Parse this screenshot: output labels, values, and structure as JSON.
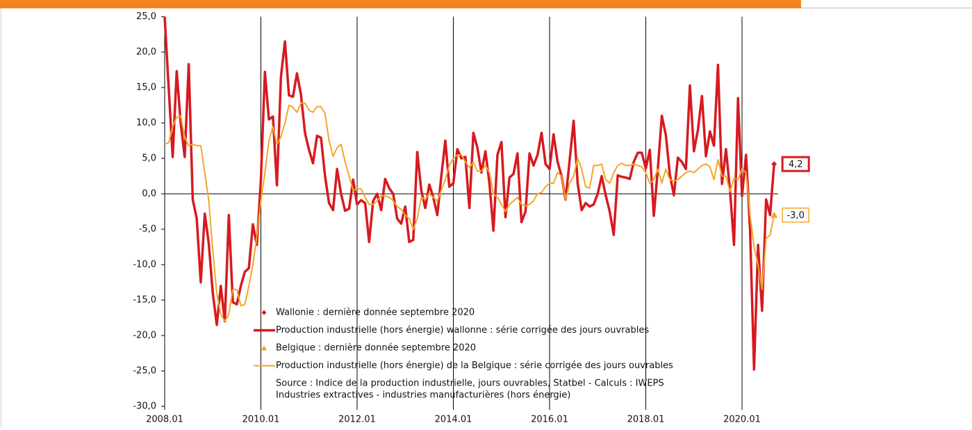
{
  "chart_data": {
    "type": "line",
    "categories": [
      "2008.01",
      null,
      null,
      null,
      null,
      null,
      null,
      null,
      null,
      null,
      null,
      null,
      null,
      null,
      null,
      null,
      null,
      null,
      null,
      null,
      null,
      null,
      null,
      null,
      "2010.01",
      null,
      null,
      null,
      null,
      null,
      null,
      null,
      null,
      null,
      null,
      null,
      null,
      null,
      null,
      null,
      null,
      null,
      null,
      null,
      null,
      null,
      null,
      null,
      "2012.01",
      null,
      null,
      null,
      null,
      null,
      null,
      null,
      null,
      null,
      null,
      null,
      null,
      null,
      null,
      null,
      null,
      null,
      null,
      null,
      null,
      null,
      null,
      null,
      "2014.01",
      null,
      null,
      null,
      null,
      null,
      null,
      null,
      null,
      null,
      null,
      null,
      null,
      null,
      null,
      null,
      null,
      null,
      null,
      null,
      null,
      null,
      null,
      null,
      "2016.01",
      null,
      null,
      null,
      null,
      null,
      null,
      null,
      null,
      null,
      null,
      null,
      null,
      null,
      null,
      null,
      null,
      null,
      null,
      null,
      null,
      null,
      null,
      null,
      "2018.01",
      null,
      null,
      null,
      null,
      null,
      null,
      null,
      null,
      null,
      null,
      null,
      null,
      null,
      null,
      null,
      null,
      null,
      null,
      null,
      null,
      null,
      null,
      null,
      "2020.01",
      null,
      null,
      null,
      null,
      null,
      null,
      null,
      null
    ],
    "series": [
      {
        "name": "Wallonie : dernière donnée septembre 2020",
        "color": "#d71920",
        "marker": "diamond",
        "values": [
          null,
          null,
          null,
          null,
          null,
          null,
          null,
          null,
          null,
          null,
          null,
          null,
          null,
          null,
          null,
          null,
          null,
          null,
          null,
          null,
          null,
          null,
          null,
          null,
          null,
          null,
          null,
          null,
          null,
          null,
          null,
          null,
          null,
          null,
          null,
          null,
          null,
          null,
          null,
          null,
          null,
          null,
          null,
          null,
          null,
          null,
          null,
          null,
          null,
          null,
          null,
          null,
          null,
          null,
          null,
          null,
          null,
          null,
          null,
          null,
          null,
          null,
          null,
          null,
          null,
          null,
          null,
          null,
          null,
          null,
          null,
          null,
          null,
          null,
          null,
          null,
          null,
          null,
          null,
          null,
          null,
          null,
          null,
          null,
          null,
          null,
          null,
          null,
          null,
          null,
          null,
          null,
          null,
          null,
          null,
          null,
          null,
          null,
          null,
          null,
          null,
          null,
          null,
          null,
          null,
          null,
          null,
          null,
          null,
          null,
          null,
          null,
          null,
          null,
          null,
          null,
          null,
          null,
          null,
          null,
          null,
          null,
          null,
          null,
          null,
          null,
          null,
          null,
          null,
          null,
          null,
          null,
          null,
          null,
          null,
          null,
          null,
          null,
          null,
          null,
          null,
          null,
          null,
          null,
          null,
          null,
          null,
          null,
          null,
          null,
          null,
          null,
          4.2
        ],
        "value_labels": [
          null,
          null,
          null,
          null,
          null,
          null,
          null,
          null,
          null,
          null,
          null,
          null,
          null,
          null,
          null,
          null,
          null,
          null,
          null,
          null,
          null,
          null,
          null,
          null,
          null,
          null,
          null,
          null,
          null,
          null,
          null,
          null,
          null,
          null,
          null,
          null,
          null,
          null,
          null,
          null,
          null,
          null,
          null,
          null,
          null,
          null,
          null,
          null,
          null,
          null,
          null,
          null,
          null,
          null,
          null,
          null,
          null,
          null,
          null,
          null,
          null,
          null,
          null,
          null,
          null,
          null,
          null,
          null,
          null,
          null,
          null,
          null,
          null,
          null,
          null,
          null,
          null,
          null,
          null,
          null,
          null,
          null,
          null,
          null,
          null,
          null,
          null,
          null,
          null,
          null,
          null,
          null,
          null,
          null,
          null,
          null,
          null,
          null,
          null,
          null,
          null,
          null,
          null,
          null,
          null,
          null,
          null,
          null,
          null,
          null,
          null,
          null,
          null,
          null,
          null,
          null,
          null,
          null,
          null,
          null,
          null,
          null,
          null,
          null,
          null,
          null,
          null,
          null,
          null,
          null,
          null,
          null,
          null,
          null,
          null,
          null,
          null,
          null,
          null,
          null,
          null,
          null,
          null,
          null,
          null,
          null,
          null,
          null,
          null,
          null,
          null,
          null,
          "4,2"
        ]
      },
      {
        "name": "Production  industrielle (hors énergie) wallonne : série corrigée des jours ouvrables",
        "color": "#d71920",
        "width": 3.5,
        "values": [
          25,
          15,
          5.2,
          17.3,
          10,
          5.2,
          18.3,
          -0.8,
          -3.5,
          -12.5,
          -2.8,
          -7,
          -14,
          -18.5,
          -13,
          -18,
          -3,
          -15.3,
          -15.6,
          -13,
          -11,
          -10.5,
          -4.3,
          -7.2,
          2,
          17.2,
          10.5,
          10.9,
          1.2,
          16.5,
          21.5,
          13.9,
          13.7,
          17,
          14,
          8.6,
          6.2,
          4.3,
          8.2,
          7.9,
          2.5,
          -1.3,
          -2.3,
          3.5,
          0,
          -2.4,
          -2.1,
          2,
          -1.5,
          -0.9,
          -1.3,
          -6.8,
          -1,
          0,
          -2.3,
          2.1,
          0.8,
          0,
          -3.5,
          -4.2,
          -1.8,
          -6.8,
          -6.5,
          5.9,
          0.5,
          -2,
          1.3,
          -0.5,
          -3,
          2.5,
          7.5,
          1,
          1.5,
          6.3,
          5,
          5.2,
          -2,
          8.6,
          6.5,
          3,
          6,
          1.5,
          -5.2,
          5.5,
          7.3,
          -3.3,
          2.3,
          2.8,
          5.7,
          -4,
          -2.5,
          5.7,
          4,
          5.5,
          8.6,
          4.2,
          3.5,
          8.4,
          4.5,
          2.5,
          -0.8,
          4.7,
          10.3,
          1.5,
          -2.3,
          -1.3,
          -1.8,
          -1.5,
          0,
          2.5,
          -0.2,
          -2.5,
          -5.8,
          2.6,
          2.4,
          2.3,
          2.1,
          4.5,
          5.8,
          5.8,
          3.6,
          6.2,
          -3.1,
          3.5,
          11,
          8.3,
          2.7,
          -0.2,
          5.1,
          4.5,
          3.5,
          15.3,
          6,
          9,
          13.8,
          5.3,
          8.8,
          6.8,
          18.2,
          1.4,
          6.3,
          0.5,
          -7.2,
          13.5,
          -0.3,
          5.5,
          -5,
          -24.8,
          -7.2,
          -16.5,
          -0.8,
          -3,
          4.2
        ]
      },
      {
        "name": "Belgique : dernière donnée septembre 2020",
        "color": "#f5a623",
        "marker": "triangle",
        "values": [
          null,
          null,
          null,
          null,
          null,
          null,
          null,
          null,
          null,
          null,
          null,
          null,
          null,
          null,
          null,
          null,
          null,
          null,
          null,
          null,
          null,
          null,
          null,
          null,
          null,
          null,
          null,
          null,
          null,
          null,
          null,
          null,
          null,
          null,
          null,
          null,
          null,
          null,
          null,
          null,
          null,
          null,
          null,
          null,
          null,
          null,
          null,
          null,
          null,
          null,
          null,
          null,
          null,
          null,
          null,
          null,
          null,
          null,
          null,
          null,
          null,
          null,
          null,
          null,
          null,
          null,
          null,
          null,
          null,
          null,
          null,
          null,
          null,
          null,
          null,
          null,
          null,
          null,
          null,
          null,
          null,
          null,
          null,
          null,
          null,
          null,
          null,
          null,
          null,
          null,
          null,
          null,
          null,
          null,
          null,
          null,
          null,
          null,
          null,
          null,
          null,
          null,
          null,
          null,
          null,
          null,
          null,
          null,
          null,
          null,
          null,
          null,
          null,
          null,
          null,
          null,
          null,
          null,
          null,
          null,
          null,
          null,
          null,
          null,
          null,
          null,
          null,
          null,
          null,
          null,
          null,
          null,
          null,
          null,
          null,
          null,
          null,
          null,
          null,
          null,
          null,
          null,
          null,
          null,
          null,
          null,
          null,
          null,
          null,
          null,
          null,
          null,
          -3
        ],
        "value_labels": [
          null,
          null,
          null,
          null,
          null,
          null,
          null,
          null,
          null,
          null,
          null,
          null,
          null,
          null,
          null,
          null,
          null,
          null,
          null,
          null,
          null,
          null,
          null,
          null,
          null,
          null,
          null,
          null,
          null,
          null,
          null,
          null,
          null,
          null,
          null,
          null,
          null,
          null,
          null,
          null,
          null,
          null,
          null,
          null,
          null,
          null,
          null,
          null,
          null,
          null,
          null,
          null,
          null,
          null,
          null,
          null,
          null,
          null,
          null,
          null,
          null,
          null,
          null,
          null,
          null,
          null,
          null,
          null,
          null,
          null,
          null,
          null,
          null,
          null,
          null,
          null,
          null,
          null,
          null,
          null,
          null,
          null,
          null,
          null,
          null,
          null,
          null,
          null,
          null,
          null,
          null,
          null,
          null,
          null,
          null,
          null,
          null,
          null,
          null,
          null,
          null,
          null,
          null,
          null,
          null,
          null,
          null,
          null,
          null,
          null,
          null,
          null,
          null,
          null,
          null,
          null,
          null,
          null,
          null,
          null,
          null,
          null,
          null,
          null,
          null,
          null,
          null,
          null,
          null,
          null,
          null,
          null,
          null,
          null,
          null,
          null,
          null,
          null,
          null,
          null,
          null,
          null,
          null,
          null,
          null,
          null,
          null,
          null,
          null,
          null,
          null,
          null,
          "-3,0"
        ]
      },
      {
        "name": "Production industrielle (hors énergie) de la Belgique : série corrigée des jours ouvrables",
        "color": "#f5a623",
        "width": 2,
        "values": [
          7,
          7.2,
          9.5,
          10.8,
          11,
          8,
          6.8,
          7,
          6.8,
          6.8,
          3,
          -1,
          -8,
          -14,
          -17,
          -18,
          -17,
          -13.5,
          -13.5,
          -15.8,
          -15.6,
          -13,
          -10,
          -6,
          -1,
          3,
          7.5,
          9.5,
          7,
          8,
          10,
          12.5,
          12.2,
          11.5,
          12.8,
          12.8,
          11.8,
          11.5,
          12.3,
          12.3,
          11.3,
          7.5,
          5.3,
          6.5,
          7,
          4.5,
          2.5,
          0.5,
          0.7,
          0.7,
          -0.5,
          -1.5,
          -1.5,
          -1,
          -0.3,
          -0.3,
          -0.5,
          -1,
          -1.8,
          -2.2,
          -3,
          -3.5,
          -5,
          -3.5,
          -0.5,
          -0.8,
          0,
          -0.5,
          -1,
          0.5,
          2,
          4,
          5,
          5.5,
          5.5,
          4.5,
          3.7,
          4.5,
          3.2,
          3.2,
          4,
          3,
          0,
          -0.5,
          -1.5,
          -2.5,
          -1.5,
          -1,
          -0.5,
          -1.5,
          -1.7,
          -1.5,
          -1,
          0,
          0.2,
          1,
          1.5,
          1.5,
          3,
          2.5,
          -0.8,
          1.5,
          2.5,
          5,
          3.5,
          1,
          0.8,
          4,
          4,
          4.2,
          2,
          1.5,
          3,
          4,
          4.3,
          4,
          4,
          4.2,
          4,
          3.8,
          3,
          1.5,
          2,
          3.5,
          1.5,
          3.5,
          2,
          1.8,
          2,
          2.5,
          3,
          3.2,
          3,
          3.5,
          4,
          4.2,
          3.8,
          2,
          4.8,
          2.5,
          2.5,
          0.3,
          2.2,
          2,
          3.5,
          3,
          -3,
          -7.5,
          -10,
          -13.5,
          -6.3,
          -5.8,
          -3
        ]
      }
    ],
    "ylim": [
      -30,
      25
    ],
    "yticks": [
      {
        "value": -30,
        "label": "-30,0"
      },
      {
        "value": -25,
        "label": "-25,0"
      },
      {
        "value": -20,
        "label": "-20,0"
      },
      {
        "value": -15,
        "label": "-15,0"
      },
      {
        "value": -10,
        "label": "-10,0"
      },
      {
        "value": -5,
        "label": "-5,0"
      },
      {
        "value": 0,
        "label": "0,0"
      },
      {
        "value": 5,
        "label": "5,0"
      },
      {
        "value": 10,
        "label": "10,0"
      },
      {
        "value": 15,
        "label": "15,0"
      },
      {
        "value": 20,
        "label": "20,0"
      },
      {
        "value": 25,
        "label": "25,0"
      }
    ],
    "notes": [
      "Source : Indice de la production industrielle, jours ouvrables, Statbel - Calculs : IWEPS",
      "Industries extractives - industries manufacturières (hors énergie)"
    ]
  }
}
